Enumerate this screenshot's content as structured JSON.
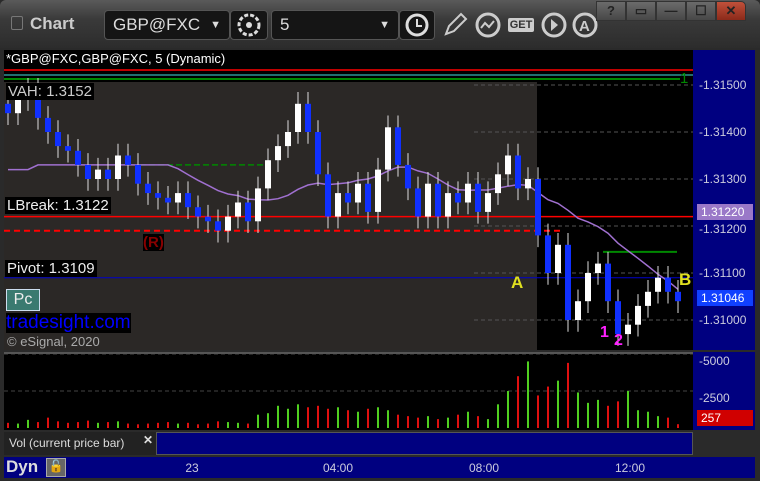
{
  "window": {
    "title": "Chart",
    "symbol": "GBP@FXC",
    "interval": "5",
    "buttons": [
      "?",
      "▭",
      "—",
      "☐",
      "✕"
    ]
  },
  "toolbar": {
    "icons": [
      "settings-icon",
      "clock-icon",
      "pencil-icon",
      "study-icon",
      "get-icon",
      "play-icon",
      "alert-icon"
    ]
  },
  "chart": {
    "legend": "*GBP@FXC,GBP@FXC, 5 (Dynamic)",
    "vah": "VAH: 1.3152",
    "lbreak": "LBreak: 1.3122",
    "pivot": "Pivot: 1.3109",
    "r_marker": "(R)",
    "label_a": "A",
    "label_b": "B",
    "magenta_1": "1",
    "magenta_2": "2",
    "pc_button": "Pc",
    "watermark": "tradesight.com",
    "copyright": "© eSignal, 2020",
    "marker_1": "1"
  },
  "chart_data": {
    "type": "candlestick",
    "price_ticks": [
      "1.31500",
      "1.31400",
      "1.31300",
      "1.31200",
      "1.31100",
      "1.31000"
    ],
    "price_tick_values": [
      1.315,
      1.314,
      1.313,
      1.312,
      1.311,
      1.31
    ],
    "ma_label": "1.31220",
    "last_price": "1.31046",
    "closes": [
      1.3144,
      1.3147,
      1.3149,
      1.3143,
      1.314,
      1.3137,
      1.3136,
      1.3133,
      1.313,
      1.3132,
      1.313,
      1.3135,
      1.3133,
      1.3129,
      1.3127,
      1.3126,
      1.3125,
      1.3127,
      1.3124,
      1.3122,
      1.3121,
      1.3119,
      1.3122,
      1.3125,
      1.3121,
      1.3128,
      1.3134,
      1.3137,
      1.314,
      1.3146,
      1.314,
      1.3131,
      1.3122,
      1.3127,
      1.3125,
      1.3129,
      1.3123,
      1.3132,
      1.3141,
      1.3133,
      1.3128,
      1.3122,
      1.3129,
      1.3122,
      1.3127,
      1.3125,
      1.3129,
      1.3123,
      1.3127,
      1.3131,
      1.3135,
      1.3128,
      1.313,
      1.3118,
      1.311,
      1.3116,
      1.31,
      1.3104,
      1.311,
      1.3112,
      1.3104,
      1.3097,
      1.3099,
      1.3103,
      1.3106,
      1.3109,
      1.3106,
      1.3104
    ],
    "volume": {
      "label": "Vol (current price bar)",
      "ticks": [
        "5000",
        "2500"
      ],
      "tick_values": [
        5000,
        2500
      ],
      "current": "257",
      "values": [
        350,
        300,
        550,
        400,
        700,
        450,
        350,
        400,
        500,
        350,
        400,
        450,
        300,
        250,
        300,
        350,
        400,
        300,
        350,
        250,
        300,
        450,
        400,
        350,
        300,
        900,
        1000,
        1500,
        1300,
        1600,
        1400,
        1500,
        1300,
        1400,
        1200,
        1100,
        1300,
        1400,
        1200,
        900,
        800,
        700,
        800,
        600,
        700,
        900,
        1100,
        800,
        600,
        1600,
        2500,
        3500,
        4500,
        2200,
        2800,
        3200,
        4400,
        2400,
        1700,
        1900,
        1500,
        1800,
        2500,
        1200,
        1100,
        800,
        700,
        257
      ]
    },
    "time_ticks": [
      "23",
      "04:00",
      "08:00",
      "12:00"
    ]
  },
  "statusbar": {
    "mode": "Dyn"
  }
}
